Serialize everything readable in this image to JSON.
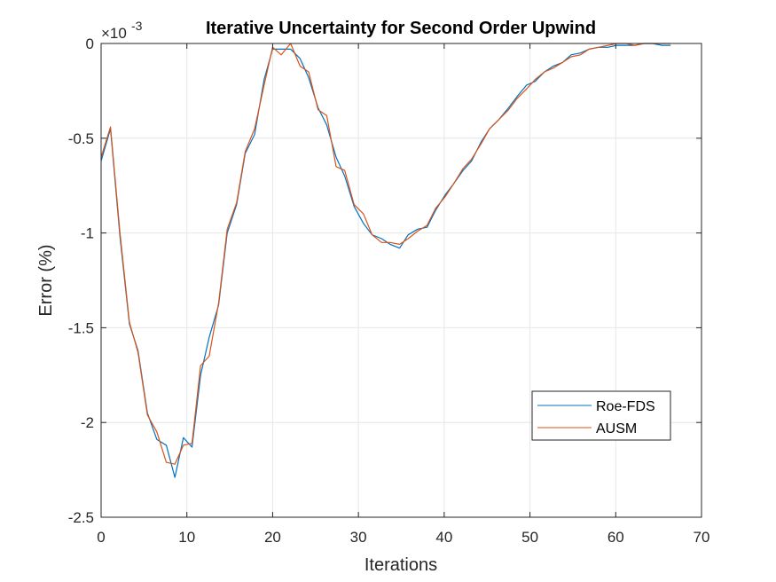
{
  "chart_data": {
    "type": "line",
    "title": "Iterative Uncertainty for Second Order Upwind",
    "xlabel": "Iterations",
    "ylabel": "Error (%)",
    "y_exponent_label": "×10",
    "y_exponent_power": "-3",
    "xlim": [
      0,
      70
    ],
    "ylim": [
      -2.5,
      0
    ],
    "x_ticks": [
      0,
      10,
      20,
      30,
      40,
      50,
      60,
      70
    ],
    "x_tick_labels": [
      "0",
      "10",
      "20",
      "30",
      "40",
      "50",
      "60",
      "70"
    ],
    "y_ticks": [
      0,
      -0.5,
      -1,
      -1.5,
      -2,
      -2.5
    ],
    "y_tick_labels": [
      "0",
      "-0.5",
      "-1",
      "-1.5",
      "-2",
      "-2.5"
    ],
    "grid": true,
    "legend_position": "bottom-right",
    "series": [
      {
        "name": "Roe-FDS",
        "color": "#0072BD",
        "x": [
          0,
          1.1,
          2.2,
          3.3,
          4.3,
          5.4,
          6.5,
          7.6,
          8.6,
          9.6,
          10.6,
          11.6,
          12.6,
          13.7,
          14.7,
          15.8,
          16.8,
          17.9,
          19.0,
          20.0,
          21.0,
          22.1,
          23.2,
          24.2,
          25.3,
          26.3,
          27.4,
          28.4,
          29.5,
          30.6,
          31.6,
          32.7,
          33.7,
          34.8,
          35.8,
          36.9,
          38.0,
          39.0,
          40.1,
          41.1,
          42.2,
          43.2,
          44.3,
          45.3,
          46.4,
          47.5,
          48.5,
          49.6,
          50.6,
          51.7,
          52.7,
          53.8,
          54.8,
          55.9,
          56.9,
          58.0,
          59.1,
          60.1,
          61.2,
          62.2,
          63.3,
          64.3,
          65.4,
          66.4
        ],
        "values": [
          -0.62,
          -0.45,
          -1.02,
          -1.48,
          -1.62,
          -1.95,
          -2.09,
          -2.12,
          -2.29,
          -2.08,
          -2.13,
          -1.75,
          -1.55,
          -1.38,
          -1.0,
          -0.85,
          -0.58,
          -0.48,
          -0.19,
          -0.03,
          -0.03,
          -0.03,
          -0.08,
          -0.18,
          -0.34,
          -0.43,
          -0.6,
          -0.7,
          -0.86,
          -0.95,
          -1.01,
          -1.03,
          -1.06,
          -1.08,
          -1.01,
          -0.98,
          -0.97,
          -0.88,
          -0.8,
          -0.74,
          -0.67,
          -0.62,
          -0.52,
          -0.45,
          -0.4,
          -0.34,
          -0.28,
          -0.22,
          -0.2,
          -0.15,
          -0.12,
          -0.1,
          -0.06,
          -0.05,
          -0.03,
          -0.02,
          -0.02,
          -0.01,
          -0.01,
          -0.01,
          0.0,
          0.0,
          -0.01,
          -0.01
        ]
      },
      {
        "name": "AUSM",
        "color": "#D95319",
        "x": [
          0,
          1.1,
          2.2,
          3.3,
          4.3,
          5.4,
          6.5,
          7.6,
          8.6,
          9.6,
          10.6,
          11.6,
          12.6,
          13.7,
          14.7,
          15.8,
          16.8,
          17.9,
          19.0,
          20.0,
          21.0,
          22.1,
          23.2,
          24.2,
          25.3,
          26.3,
          27.4,
          28.4,
          29.5,
          30.6,
          31.6,
          32.7,
          33.7,
          34.8,
          35.8,
          36.9,
          38.0,
          39.0,
          40.1,
          41.1,
          42.2,
          43.2,
          44.3,
          45.3,
          46.4,
          47.5,
          48.5,
          49.6,
          50.6,
          51.7,
          52.7,
          53.8,
          54.8,
          55.9,
          56.9,
          58.0,
          59.1,
          60.1,
          61.2,
          62.2,
          63.3,
          64.3,
          65.4,
          66.4
        ],
        "values": [
          -0.6,
          -0.44,
          -1.0,
          -1.47,
          -1.63,
          -1.96,
          -2.05,
          -2.21,
          -2.22,
          -2.12,
          -2.11,
          -1.7,
          -1.65,
          -1.37,
          -0.98,
          -0.84,
          -0.57,
          -0.45,
          -0.22,
          -0.02,
          -0.06,
          0.0,
          -0.12,
          -0.15,
          -0.35,
          -0.38,
          -0.65,
          -0.67,
          -0.85,
          -0.9,
          -1.01,
          -1.05,
          -1.05,
          -1.06,
          -1.03,
          -0.99,
          -0.96,
          -0.87,
          -0.81,
          -0.74,
          -0.66,
          -0.61,
          -0.53,
          -0.45,
          -0.4,
          -0.35,
          -0.29,
          -0.24,
          -0.19,
          -0.15,
          -0.13,
          -0.1,
          -0.07,
          -0.06,
          -0.03,
          -0.02,
          -0.01,
          0.0,
          0.0,
          -0.01,
          0.0,
          0.0,
          0.0,
          0.0
        ]
      }
    ]
  }
}
